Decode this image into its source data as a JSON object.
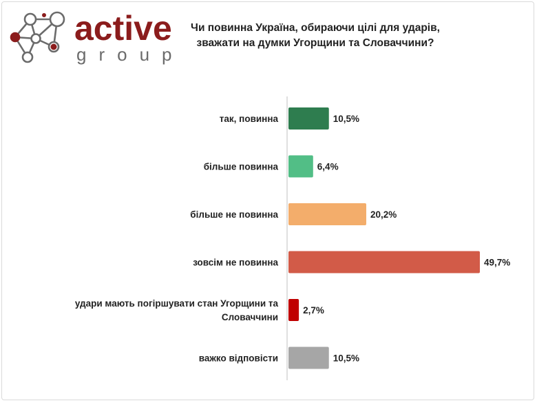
{
  "logo": {
    "word1": "active",
    "word2": "group"
  },
  "title_lines": [
    "Чи повинна Україна, обираючи цілі для ударів,",
    "зважати на думки Угорщини та Словаччини?"
  ],
  "colors": {
    "brand": "#8b1c1c",
    "logo_gray": "#6b6b6b",
    "axis": "#bfbfbf"
  },
  "chart_data": {
    "type": "bar",
    "orientation": "horizontal",
    "title": "Чи повинна Україна, обираючи цілі для ударів, зважати на думки Угорщини та Словаччини?",
    "categories": [
      [
        "так, повинна"
      ],
      [
        "більше повинна"
      ],
      [
        "більше не повинна"
      ],
      [
        "зовсім не повинна"
      ],
      [
        "удари мають погіршувати стан Угорщини та",
        "Словаччини"
      ],
      [
        "важко відповісти"
      ]
    ],
    "values": [
      10.5,
      6.4,
      20.2,
      49.7,
      2.7,
      10.5
    ],
    "value_labels": [
      "10,5%",
      "6,4%",
      "20,2%",
      "49,7%",
      "2,7%",
      "10,5%"
    ],
    "colors": [
      "#2e7d4f",
      "#52be86",
      "#f3ad6b",
      "#d25b48",
      "#c00000",
      "#a6a6a6"
    ],
    "xlim": [
      0,
      50
    ],
    "grid": false,
    "legend": "none"
  }
}
